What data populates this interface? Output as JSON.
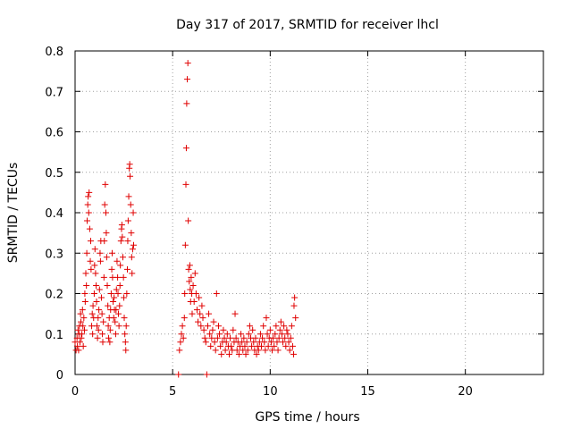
{
  "chart_data": {
    "type": "scatter",
    "title": "Day 317 of 2017, SRMTID for receiver lhcl",
    "xlabel": "GPS time / hours",
    "ylabel": "SRMTID / TECUs",
    "xlim": [
      0,
      24
    ],
    "ylim": [
      0,
      0.8
    ],
    "xticks": [
      0,
      5,
      10,
      15,
      20
    ],
    "xtick_labels": [
      "0",
      "5",
      "10",
      "15",
      "20"
    ],
    "yticks": [
      0,
      0.1,
      0.2,
      0.3,
      0.4,
      0.5,
      0.6,
      0.7,
      0.8
    ],
    "ytick_labels": [
      "0",
      "0.1",
      "0.2",
      "0.3",
      "0.4",
      "0.5",
      "0.6",
      "0.7",
      "0.8"
    ],
    "grid": true,
    "marker": "+",
    "color": "#e00000",
    "series": [
      {
        "name": "SRMTID",
        "points": [
          [
            0.0,
            0.08
          ],
          [
            0.05,
            0.06
          ],
          [
            0.1,
            0.09
          ],
          [
            0.12,
            0.07
          ],
          [
            0.15,
            0.11
          ],
          [
            0.18,
            0.06
          ],
          [
            0.2,
            0.1
          ],
          [
            0.22,
            0.12
          ],
          [
            0.25,
            0.08
          ],
          [
            0.28,
            0.15
          ],
          [
            0.3,
            0.13
          ],
          [
            0.32,
            0.09
          ],
          [
            0.35,
            0.1
          ],
          [
            0.38,
            0.16
          ],
          [
            0.4,
            0.12
          ],
          [
            0.42,
            0.07
          ],
          [
            0.45,
            0.14
          ],
          [
            0.48,
            0.11
          ],
          [
            0.5,
            0.2
          ],
          [
            0.52,
            0.18
          ],
          [
            0.55,
            0.25
          ],
          [
            0.58,
            0.22
          ],
          [
            0.6,
            0.3
          ],
          [
            0.62,
            0.38
          ],
          [
            0.65,
            0.42
          ],
          [
            0.67,
            0.44
          ],
          [
            0.7,
            0.4
          ],
          [
            0.72,
            0.45
          ],
          [
            0.75,
            0.36
          ],
          [
            0.78,
            0.28
          ],
          [
            0.8,
            0.33
          ],
          [
            0.82,
            0.26
          ],
          [
            0.85,
            0.12
          ],
          [
            0.88,
            0.15
          ],
          [
            0.9,
            0.1
          ],
          [
            0.92,
            0.17
          ],
          [
            0.95,
            0.14
          ],
          [
            0.98,
            0.2
          ],
          [
            1.0,
            0.27
          ],
          [
            1.02,
            0.31
          ],
          [
            1.05,
            0.25
          ],
          [
            1.08,
            0.22
          ],
          [
            1.1,
            0.18
          ],
          [
            1.12,
            0.12
          ],
          [
            1.15,
            0.09
          ],
          [
            1.18,
            0.14
          ],
          [
            1.2,
            0.11
          ],
          [
            1.22,
            0.16
          ],
          [
            1.25,
            0.21
          ],
          [
            1.28,
            0.3
          ],
          [
            1.3,
            0.28
          ],
          [
            1.32,
            0.33
          ],
          [
            1.35,
            0.19
          ],
          [
            1.38,
            0.15
          ],
          [
            1.4,
            0.1
          ],
          [
            1.42,
            0.08
          ],
          [
            1.45,
            0.13
          ],
          [
            1.48,
            0.24
          ],
          [
            1.5,
            0.33
          ],
          [
            1.52,
            0.42
          ],
          [
            1.55,
            0.47
          ],
          [
            1.58,
            0.4
          ],
          [
            1.6,
            0.35
          ],
          [
            1.62,
            0.29
          ],
          [
            1.65,
            0.22
          ],
          [
            1.68,
            0.17
          ],
          [
            1.7,
            0.12
          ],
          [
            1.72,
            0.09
          ],
          [
            1.75,
            0.14
          ],
          [
            1.78,
            0.08
          ],
          [
            1.8,
            0.11
          ],
          [
            1.82,
            0.16
          ],
          [
            1.85,
            0.2
          ],
          [
            1.88,
            0.26
          ],
          [
            1.9,
            0.3
          ],
          [
            1.92,
            0.24
          ],
          [
            1.95,
            0.18
          ],
          [
            1.98,
            0.14
          ],
          [
            2.0,
            0.19
          ],
          [
            2.02,
            0.16
          ],
          [
            2.05,
            0.13
          ],
          [
            2.08,
            0.1
          ],
          [
            2.1,
            0.16
          ],
          [
            2.12,
            0.21
          ],
          [
            2.15,
            0.28
          ],
          [
            2.18,
            0.24
          ],
          [
            2.2,
            0.2
          ],
          [
            2.22,
            0.15
          ],
          [
            2.25,
            0.12
          ],
          [
            2.28,
            0.17
          ],
          [
            2.3,
            0.22
          ],
          [
            2.32,
            0.27
          ],
          [
            2.35,
            0.33
          ],
          [
            2.38,
            0.36
          ],
          [
            2.4,
            0.37
          ],
          [
            2.42,
            0.34
          ],
          [
            2.45,
            0.29
          ],
          [
            2.48,
            0.24
          ],
          [
            2.5,
            0.19
          ],
          [
            2.52,
            0.14
          ],
          [
            2.55,
            0.1
          ],
          [
            2.58,
            0.08
          ],
          [
            2.6,
            0.06
          ],
          [
            2.62,
            0.12
          ],
          [
            2.65,
            0.2
          ],
          [
            2.68,
            0.26
          ],
          [
            2.7,
            0.33
          ],
          [
            2.72,
            0.38
          ],
          [
            2.75,
            0.44
          ],
          [
            2.78,
            0.51
          ],
          [
            2.8,
            0.52
          ],
          [
            2.82,
            0.49
          ],
          [
            2.85,
            0.42
          ],
          [
            2.88,
            0.35
          ],
          [
            2.9,
            0.29
          ],
          [
            2.92,
            0.25
          ],
          [
            2.95,
            0.31
          ],
          [
            2.98,
            0.4
          ],
          [
            3.0,
            0.32
          ],
          [
            5.3,
            0.0
          ],
          [
            5.35,
            0.06
          ],
          [
            5.4,
            0.08
          ],
          [
            5.45,
            0.1
          ],
          [
            5.5,
            0.12
          ],
          [
            5.55,
            0.09
          ],
          [
            5.6,
            0.14
          ],
          [
            5.62,
            0.2
          ],
          [
            5.65,
            0.32
          ],
          [
            5.68,
            0.47
          ],
          [
            5.7,
            0.56
          ],
          [
            5.72,
            0.67
          ],
          [
            5.75,
            0.73
          ],
          [
            5.78,
            0.77
          ],
          [
            5.8,
            0.38
          ],
          [
            5.82,
            0.26
          ],
          [
            5.85,
            0.23
          ],
          [
            5.88,
            0.27
          ],
          [
            5.9,
            0.21
          ],
          [
            5.92,
            0.18
          ],
          [
            5.95,
            0.24
          ],
          [
            5.98,
            0.2
          ],
          [
            6.0,
            0.15
          ],
          [
            6.05,
            0.22
          ],
          [
            6.1,
            0.18
          ],
          [
            6.15,
            0.25
          ],
          [
            6.2,
            0.2
          ],
          [
            6.25,
            0.16
          ],
          [
            6.3,
            0.13
          ],
          [
            6.35,
            0.19
          ],
          [
            6.4,
            0.15
          ],
          [
            6.45,
            0.12
          ],
          [
            6.5,
            0.17
          ],
          [
            6.55,
            0.14
          ],
          [
            6.6,
            0.11
          ],
          [
            6.65,
            0.09
          ],
          [
            6.7,
            0.08
          ],
          [
            6.75,
            0.0
          ],
          [
            6.8,
            0.12
          ],
          [
            6.85,
            0.15
          ],
          [
            6.9,
            0.1
          ],
          [
            6.95,
            0.07
          ],
          [
            7.0,
            0.09
          ],
          [
            7.05,
            0.11
          ],
          [
            7.1,
            0.13
          ],
          [
            7.15,
            0.08
          ],
          [
            7.2,
            0.06
          ],
          [
            7.25,
            0.2
          ],
          [
            7.3,
            0.09
          ],
          [
            7.35,
            0.12
          ],
          [
            7.4,
            0.1
          ],
          [
            7.45,
            0.07
          ],
          [
            7.5,
            0.05
          ],
          [
            7.55,
            0.08
          ],
          [
            7.6,
            0.11
          ],
          [
            7.65,
            0.09
          ],
          [
            7.7,
            0.06
          ],
          [
            7.75,
            0.08
          ],
          [
            7.8,
            0.1
          ],
          [
            7.85,
            0.07
          ],
          [
            7.9,
            0.05
          ],
          [
            7.95,
            0.09
          ],
          [
            8.0,
            0.07
          ],
          [
            8.05,
            0.06
          ],
          [
            8.1,
            0.11
          ],
          [
            8.15,
            0.08
          ],
          [
            8.2,
            0.15
          ],
          [
            8.25,
            0.09
          ],
          [
            8.3,
            0.06
          ],
          [
            8.35,
            0.08
          ],
          [
            8.4,
            0.05
          ],
          [
            8.45,
            0.07
          ],
          [
            8.5,
            0.1
          ],
          [
            8.55,
            0.08
          ],
          [
            8.6,
            0.06
          ],
          [
            8.65,
            0.09
          ],
          [
            8.7,
            0.07
          ],
          [
            8.75,
            0.05
          ],
          [
            8.8,
            0.08
          ],
          [
            8.85,
            0.06
          ],
          [
            8.9,
            0.1
          ],
          [
            8.95,
            0.12
          ],
          [
            9.0,
            0.09
          ],
          [
            9.05,
            0.07
          ],
          [
            9.1,
            0.11
          ],
          [
            9.15,
            0.08
          ],
          [
            9.2,
            0.06
          ],
          [
            9.25,
            0.09
          ],
          [
            9.3,
            0.05
          ],
          [
            9.35,
            0.07
          ],
          [
            9.4,
            0.06
          ],
          [
            9.45,
            0.08
          ],
          [
            9.5,
            0.1
          ],
          [
            9.55,
            0.07
          ],
          [
            9.6,
            0.09
          ],
          [
            9.65,
            0.12
          ],
          [
            9.7,
            0.08
          ],
          [
            9.75,
            0.06
          ],
          [
            9.8,
            0.14
          ],
          [
            9.85,
            0.1
          ],
          [
            9.9,
            0.07
          ],
          [
            9.95,
            0.09
          ],
          [
            10.0,
            0.11
          ],
          [
            10.05,
            0.08
          ],
          [
            10.1,
            0.06
          ],
          [
            10.15,
            0.09
          ],
          [
            10.2,
            0.07
          ],
          [
            10.25,
            0.1
          ],
          [
            10.3,
            0.12
          ],
          [
            10.35,
            0.08
          ],
          [
            10.4,
            0.06
          ],
          [
            10.45,
            0.09
          ],
          [
            10.5,
            0.11
          ],
          [
            10.55,
            0.13
          ],
          [
            10.6,
            0.1
          ],
          [
            10.65,
            0.08
          ],
          [
            10.7,
            0.12
          ],
          [
            10.75,
            0.09
          ],
          [
            10.8,
            0.07
          ],
          [
            10.85,
            0.11
          ],
          [
            10.9,
            0.1
          ],
          [
            10.95,
            0.08
          ],
          [
            11.0,
            0.06
          ],
          [
            11.05,
            0.09
          ],
          [
            11.1,
            0.12
          ],
          [
            11.15,
            0.07
          ],
          [
            11.2,
            0.05
          ],
          [
            11.22,
            0.17
          ],
          [
            11.25,
            0.19
          ],
          [
            11.3,
            0.14
          ]
        ]
      }
    ]
  }
}
